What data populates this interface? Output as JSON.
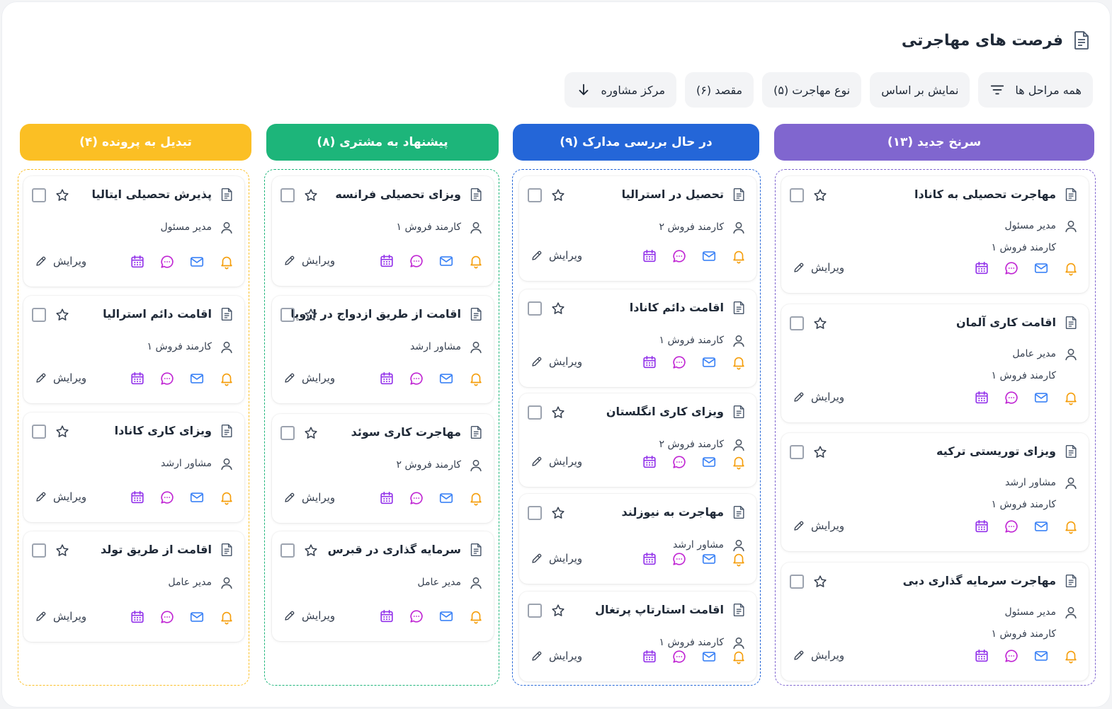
{
  "header": {
    "title": "فرصت های مهاجرتی"
  },
  "filters": [
    {
      "label": "همه مراحل ها",
      "icon": "filter-icon"
    },
    {
      "label": "نمایش بر اساس"
    },
    {
      "label": "نوع مهاجرت (۵)"
    },
    {
      "label": "مقصد (۶)"
    },
    {
      "label": "مرکز مشاوره",
      "icon": "arrow-down-icon"
    }
  ],
  "colors": {
    "purple": "#8066cf",
    "blue": "#2466d8",
    "green": "#1db57a",
    "yellow": "#fbbf24",
    "bell": "#f59e0b",
    "mail": "#3b82f6",
    "chat": "#c026d3",
    "calendar": "#9333ea"
  },
  "edit_label": "ویرایش",
  "columns": [
    {
      "title": "سرنخ جدید (۱۳)",
      "cards": [
        {
          "title": "مهاجرت تحصیلی به کانادا",
          "roles": [
            "مدیر مسئول",
            "کارمند فروش ۱"
          ]
        },
        {
          "title": "اقامت کاری آلمان",
          "roles": [
            "مدیر عامل",
            "کارمند فروش ۱"
          ]
        },
        {
          "title": "ویزای توریستی ترکیه",
          "roles": [
            "مشاور ارشد",
            "کارمند فروش ۱"
          ]
        },
        {
          "title": "مهاجرت سرمایه گذاری دبی",
          "roles": [
            "مدیر مسئول",
            "کارمند فروش ۱"
          ]
        }
      ]
    },
    {
      "title": "در حال بررسی مدارک (۹)",
      "cards": [
        {
          "title": "تحصیل در استرالیا",
          "roles": [
            "کارمند فروش ۲"
          ]
        },
        {
          "title": "اقامت دائم کانادا",
          "roles": [
            "کارمند فروش ۱"
          ]
        },
        {
          "title": "ویزای کاری انگلستان",
          "roles": [
            "کارمند فروش ۲"
          ]
        },
        {
          "title": "مهاجرت به نیوزلند",
          "roles": [
            "مشاور ارشد"
          ]
        },
        {
          "title": "اقامت استارتاپ پرتغال",
          "roles": [
            "کارمند فروش ۱"
          ]
        }
      ]
    },
    {
      "title": "پیشنهاد به مشتری (۸)",
      "cards": [
        {
          "title": "ویزای تحصیلی فرانسه",
          "roles": [
            "کارمند فروش ۱"
          ]
        },
        {
          "title": "اقامت از طریق ازدواج در اروپا",
          "roles": [
            "مشاور ارشد"
          ]
        },
        {
          "title": "مهاجرت کاری سوئد",
          "roles": [
            "کارمند فروش ۲"
          ]
        },
        {
          "title": "سرمایه گذاری در قبرس",
          "roles": [
            "مدیر عامل"
          ]
        }
      ]
    },
    {
      "title": "تبدیل به پرونده (۴)",
      "cards": [
        {
          "title": "پذیرش تحصیلی ایتالیا",
          "roles": [
            "مدیر مسئول"
          ]
        },
        {
          "title": "اقامت دائم استرالیا",
          "roles": [
            "کارمند فروش ۱"
          ]
        },
        {
          "title": "ویزای کاری کانادا",
          "roles": [
            "مشاور ارشد"
          ]
        },
        {
          "title": "اقامت از طریق تولد",
          "roles": [
            "مدیر عامل"
          ]
        }
      ]
    }
  ]
}
